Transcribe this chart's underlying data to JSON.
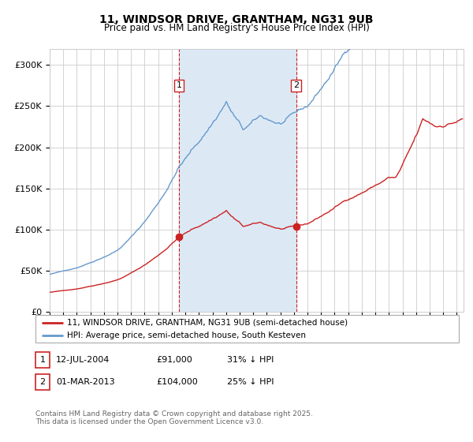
{
  "title_line1": "11, WINDSOR DRIVE, GRANTHAM, NG31 9UB",
  "title_line2": "Price paid vs. HM Land Registry's House Price Index (HPI)",
  "xlim_start": 1995.0,
  "xlim_end": 2025.5,
  "ylim": [
    0,
    320000
  ],
  "yticks": [
    0,
    50000,
    100000,
    150000,
    200000,
    250000,
    300000
  ],
  "ytick_labels": [
    "£0",
    "£50K",
    "£100K",
    "£150K",
    "£200K",
    "£250K",
    "£300K"
  ],
  "transaction1": {
    "date_x": 2004.54,
    "price": 91000,
    "label": "1"
  },
  "transaction2": {
    "date_x": 2013.17,
    "price": 104000,
    "label": "2"
  },
  "legend_label1": "11, WINDSOR DRIVE, GRANTHAM, NG31 9UB (semi-detached house)",
  "legend_label2": "HPI: Average price, semi-detached house, South Kesteven",
  "footnote": "Contains HM Land Registry data © Crown copyright and database right 2025.\nThis data is licensed under the Open Government Licence v3.0.",
  "table_row1": [
    "1",
    "12-JUL-2004",
    "£91,000",
    "31% ↓ HPI"
  ],
  "table_row2": [
    "2",
    "01-MAR-2013",
    "£104,000",
    "25% ↓ HPI"
  ],
  "line_color_red": "#cc2222",
  "line_color_blue": "#6699cc",
  "shade_color": "#dce9f5",
  "shade_dashed_color": "#cc2222",
  "grid_color": "#cccccc",
  "label_box_color": "#cc2222"
}
